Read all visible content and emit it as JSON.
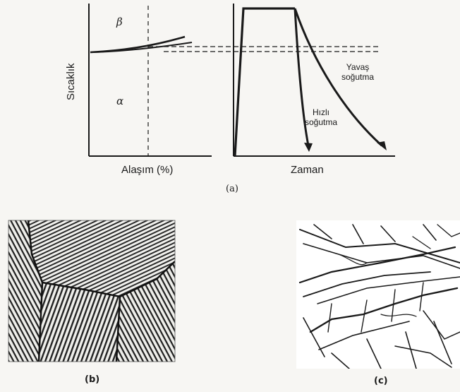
{
  "panel_a": {
    "left_plot": {
      "y_label": "Sıcaklık",
      "x_label": "Alaşım (%)",
      "phase_top": "β",
      "phase_bottom": "α"
    },
    "right_plot": {
      "x_label": "Zaman",
      "slow_label_1": "Yavaş",
      "slow_label_2": "soğutma",
      "fast_label_1": "Hızlı",
      "fast_label_2": "soğutma"
    },
    "caption": "(a)"
  },
  "panel_b": {
    "caption": "(b)"
  },
  "panel_c": {
    "caption": "(c)"
  },
  "colors": {
    "ink": "#1a1a1a",
    "paper": "#f7f6f3"
  }
}
